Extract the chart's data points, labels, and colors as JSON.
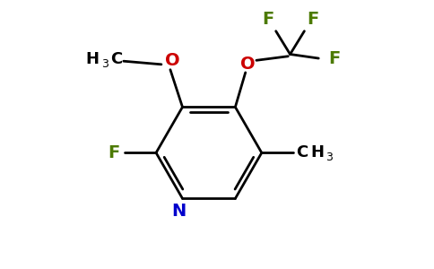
{
  "bg_color": "#ffffff",
  "black": "#000000",
  "blue": "#0000cc",
  "red": "#cc0000",
  "green": "#4c7a00",
  "lw": 2.0,
  "figsize": [
    4.84,
    3.0
  ],
  "dpi": 100,
  "xlim": [
    0,
    10
  ],
  "ylim": [
    0,
    6.5
  ]
}
